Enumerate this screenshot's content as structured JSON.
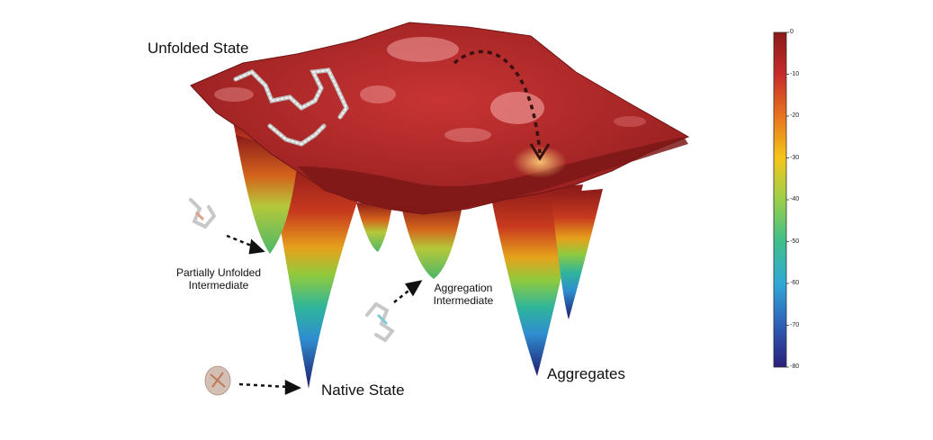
{
  "labels": {
    "unfolded_state": "Unfolded State",
    "partially_unfolded_line1": "Partially Unfolded",
    "partially_unfolded_line2": "Intermediate",
    "aggregation_intermediate_line1": "Aggregation",
    "aggregation_intermediate_line2": "Intermediate",
    "native_state": "Native State",
    "aggregates": "Aggregates"
  },
  "colorbar": {
    "ticks": [
      "0",
      "-10",
      "-20",
      "-30",
      "-40",
      "-50",
      "-60",
      "-70",
      "-80"
    ],
    "colors": [
      "#8b1a1a",
      "#c62a2a",
      "#e8731e",
      "#f5c518",
      "#9bcf4a",
      "#3fbf8a",
      "#2fa9d6",
      "#2f5fb8",
      "#2a1f7a"
    ]
  },
  "colors": {
    "surface_top": "#a31f1f",
    "surface_highlight": "#f08a8a",
    "molecule": "#d8d8d8"
  }
}
